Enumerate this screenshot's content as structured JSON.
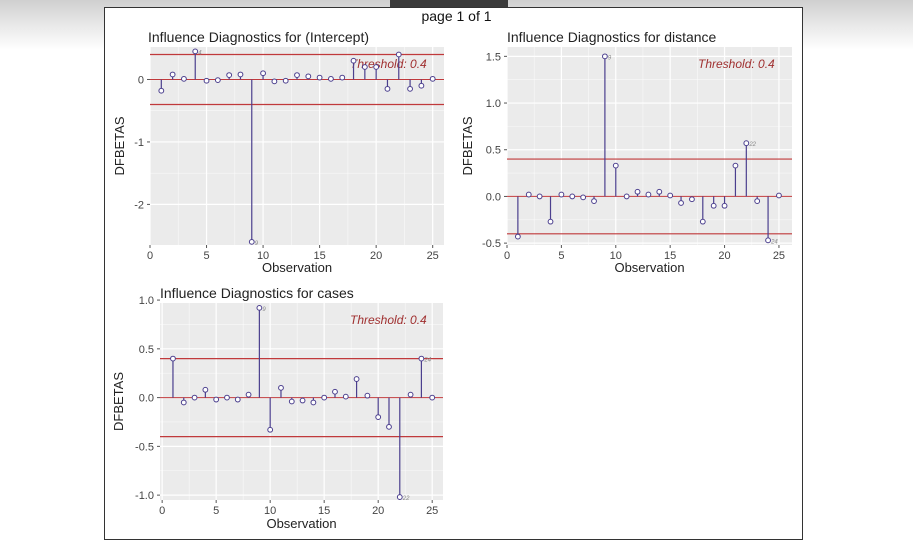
{
  "page": {
    "label": "page 1 of 1"
  },
  "colors": {
    "panel_bg": "#ebebeb",
    "grid": "#ffffff",
    "threshold_line": "#c0393b",
    "stem": "#4b3f8e",
    "point_fill": "#ffffff",
    "threshold_text": "#a03030",
    "text": "#222222"
  },
  "chart_data": [
    {
      "type": "scatter",
      "title": "Influence Diagnostics for (Intercept)",
      "xlabel": "Observation",
      "ylabel": "DFBETAS",
      "threshold_label": "Threshold: 0.4",
      "threshold": 0.4,
      "xlim": [
        0,
        26
      ],
      "ylim": [
        -2.65,
        0.52
      ],
      "xticks": [
        0,
        5,
        10,
        15,
        20,
        25
      ],
      "yticks": [
        0,
        -1,
        -2
      ],
      "x": [
        1,
        2,
        3,
        4,
        5,
        6,
        7,
        8,
        9,
        10,
        11,
        12,
        13,
        14,
        15,
        16,
        17,
        18,
        19,
        20,
        21,
        22,
        23,
        24,
        25
      ],
      "values": [
        -0.18,
        0.08,
        0.01,
        0.45,
        -0.02,
        -0.01,
        0.07,
        0.08,
        -2.6,
        0.1,
        -0.03,
        -0.02,
        0.07,
        0.05,
        0.03,
        0.01,
        0.03,
        0.3,
        0.2,
        0.2,
        -0.15,
        0.4,
        -0.15,
        -0.1,
        0.01
      ],
      "point_labels": [
        {
          "x": 4,
          "text": "4"
        },
        {
          "x": 9,
          "text": "9"
        }
      ]
    },
    {
      "type": "scatter",
      "title": "Influence Diagnostics for distance",
      "xlabel": "Observation",
      "ylabel": "DFBETAS",
      "threshold_label": "Threshold: 0.4",
      "threshold": 0.4,
      "xlim": [
        0,
        26.2
      ],
      "ylim": [
        -0.52,
        1.6
      ],
      "xticks": [
        0,
        5,
        10,
        15,
        20,
        25
      ],
      "yticks": [
        1.5,
        1.0,
        0.5,
        0.0,
        -0.5
      ],
      "x": [
        1,
        2,
        3,
        4,
        5,
        6,
        7,
        8,
        9,
        10,
        11,
        12,
        13,
        14,
        15,
        16,
        17,
        18,
        19,
        20,
        21,
        22,
        23,
        24,
        25
      ],
      "values": [
        -0.43,
        0.02,
        0.0,
        -0.27,
        0.02,
        0.0,
        -0.01,
        -0.05,
        1.5,
        0.33,
        0.0,
        0.05,
        0.02,
        0.05,
        0.01,
        -0.07,
        -0.03,
        -0.27,
        -0.1,
        -0.1,
        0.33,
        0.57,
        -0.05,
        -0.47,
        0.01
      ],
      "point_labels": [
        {
          "x": 9,
          "text": "9"
        },
        {
          "x": 22,
          "text": "22"
        },
        {
          "x": 24,
          "text": "24"
        }
      ]
    },
    {
      "type": "scatter",
      "title": "Influence Diagnostics for cases",
      "xlabel": "Observation",
      "ylabel": "DFBETAS",
      "threshold_label": "Threshold: 0.4",
      "threshold": 0.4,
      "xlim": [
        -0.2,
        26
      ],
      "ylim": [
        -1.05,
        0.97
      ],
      "xticks": [
        0,
        5,
        10,
        15,
        20,
        25
      ],
      "yticks": [
        1.0,
        0.5,
        0.0,
        -0.5,
        -1.0
      ],
      "x": [
        1,
        2,
        3,
        4,
        5,
        6,
        7,
        8,
        9,
        10,
        11,
        12,
        13,
        14,
        15,
        16,
        17,
        18,
        19,
        20,
        21,
        22,
        23,
        24,
        25
      ],
      "values": [
        0.4,
        -0.05,
        0.0,
        0.08,
        -0.02,
        0.0,
        -0.02,
        0.03,
        0.92,
        -0.33,
        0.1,
        -0.04,
        -0.03,
        -0.05,
        0.0,
        0.06,
        0.01,
        0.19,
        0.02,
        -0.2,
        -0.3,
        -1.02,
        0.03,
        0.4,
        0.0
      ],
      "point_labels": [
        {
          "x": 9,
          "text": "9"
        },
        {
          "x": 22,
          "text": "22"
        },
        {
          "x": 24,
          "text": "24"
        }
      ]
    }
  ]
}
